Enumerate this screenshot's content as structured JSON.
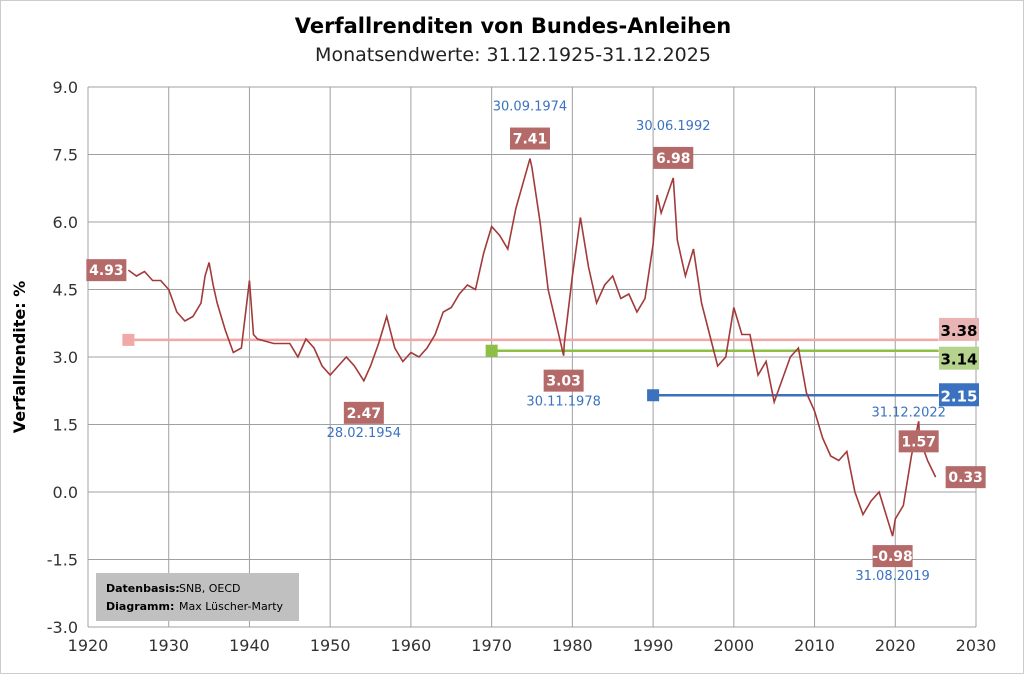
{
  "chart_data": {
    "type": "line",
    "title": "Verfallrenditen von Bundes-Anleihen",
    "subtitle": "Monatsendwerte: 31.12.1925-31.12.2025",
    "ylabel": "Verfallrendite: %",
    "xlabel": "",
    "xlim": [
      1920,
      2030
    ],
    "ylim": [
      -3.0,
      9.0
    ],
    "xticks": [
      "1920",
      "1930",
      "1940",
      "1950",
      "1960",
      "1970",
      "1980",
      "1990",
      "2000",
      "2010",
      "2020",
      "2030"
    ],
    "yticks": [
      "9.0",
      "7.5",
      "6.0",
      "4.5",
      "3.0",
      "1.5",
      "0.0",
      "-1.5",
      "-3.0"
    ],
    "grid": true,
    "series": [
      {
        "color": "#a33a3a",
        "x": [
          1925,
          1926,
          1927,
          1928,
          1929,
          1930,
          1931,
          1932,
          1933,
          1934,
          1934.5,
          1935,
          1935.5,
          1936,
          1937,
          1938,
          1939,
          1940,
          1940.5,
          1941,
          1943,
          1945,
          1946,
          1947,
          1948,
          1949,
          1950,
          1951,
          1952,
          1953,
          1954.17,
          1955,
          1956,
          1957,
          1958,
          1959,
          1960,
          1961,
          1962,
          1963,
          1964,
          1965,
          1966,
          1967,
          1968,
          1969,
          1970,
          1971,
          1972,
          1973,
          1974.75,
          1975,
          1976,
          1977,
          1978.92,
          1979,
          1980,
          1981,
          1982,
          1983,
          1984,
          1985,
          1986,
          1987,
          1988,
          1989,
          1990,
          1990.5,
          1991,
          1992.5,
          1993,
          1994,
          1995,
          1996,
          1997,
          1998,
          1999,
          2000,
          2001,
          2002,
          2003,
          2004,
          2005,
          2006,
          2007,
          2008,
          2009,
          2010,
          2011,
          2012,
          2013,
          2014,
          2015,
          2016,
          2017,
          2018,
          2019.67,
          2020,
          2021,
          2022,
          2022.9,
          2023,
          2024,
          2025
        ],
        "values": [
          4.93,
          4.8,
          4.9,
          4.7,
          4.7,
          4.5,
          4.0,
          3.8,
          3.9,
          4.2,
          4.8,
          5.1,
          4.6,
          4.2,
          3.6,
          3.1,
          3.2,
          4.7,
          3.5,
          3.4,
          3.3,
          3.3,
          3.0,
          3.4,
          3.2,
          2.8,
          2.6,
          2.8,
          3.0,
          2.8,
          2.47,
          2.8,
          3.3,
          3.9,
          3.2,
          2.9,
          3.1,
          3.0,
          3.2,
          3.5,
          4.0,
          4.1,
          4.4,
          4.6,
          4.5,
          5.3,
          5.9,
          5.7,
          5.4,
          6.3,
          7.41,
          7.2,
          6.0,
          4.5,
          3.03,
          3.3,
          4.8,
          6.1,
          5.0,
          4.2,
          4.6,
          4.8,
          4.3,
          4.4,
          4.0,
          4.3,
          5.5,
          6.6,
          6.2,
          6.98,
          5.6,
          4.8,
          5.4,
          4.2,
          3.5,
          2.8,
          3.0,
          4.1,
          3.5,
          3.5,
          2.6,
          2.9,
          2.0,
          2.5,
          3.0,
          3.2,
          2.2,
          1.8,
          1.2,
          0.8,
          0.7,
          0.9,
          0.0,
          -0.5,
          -0.2,
          0.0,
          -0.98,
          -0.6,
          -0.3,
          0.8,
          1.57,
          1.2,
          0.7,
          0.33
        ]
      }
    ],
    "averages": [
      {
        "from": 1925,
        "to": 2025,
        "value": 3.38,
        "label": "3.38",
        "color": "#f0a8a8",
        "label_bg": "#e8b4b4"
      },
      {
        "from": 1970,
        "to": 2025,
        "value": 3.14,
        "label": "3.14",
        "color": "#8cbf44",
        "label_bg": "#b5d38c"
      },
      {
        "from": 1990,
        "to": 2025,
        "value": 2.15,
        "label": "2.15",
        "color": "#3b72c0",
        "label_bg": "#3b72c0"
      }
    ],
    "annotations": [
      {
        "x": 1925,
        "y": 4.93,
        "value": "4.93",
        "date": ""
      },
      {
        "x": 1954.17,
        "y": 2.47,
        "value": "2.47",
        "date": "28.02.1954"
      },
      {
        "x": 1974.75,
        "y": 7.41,
        "value": "7.41",
        "date": "30.09.1974"
      },
      {
        "x": 1978.92,
        "y": 3.03,
        "value": "3.03",
        "date": "30.11.1978"
      },
      {
        "x": 1992.5,
        "y": 6.98,
        "value": "6.98",
        "date": "30.06.1992"
      },
      {
        "x": 2019.67,
        "y": -0.98,
        "value": "-0.98",
        "date": "31.08.2019"
      },
      {
        "x": 2022.9,
        "y": 1.57,
        "value": "1.57",
        "date": "31.12.2022"
      },
      {
        "x": 2025,
        "y": 0.33,
        "value": "0.33",
        "date": ""
      }
    ],
    "source": {
      "label1": "Datenbasis:",
      "value1": "SNB, OECD",
      "label2": "Diagramm:",
      "value2": "Max Lüscher-Marty"
    }
  }
}
